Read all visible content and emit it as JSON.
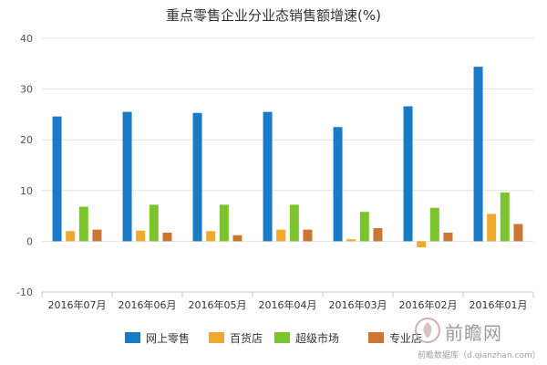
{
  "chart_data": {
    "type": "bar",
    "title": "重点零售企业分业态销售额增速(%)",
    "categories": [
      "2016年07月",
      "2016年06月",
      "2016年05月",
      "2016年04月",
      "2016年03月",
      "2016年02月",
      "2016年01月"
    ],
    "series": [
      {
        "name": "网上零售",
        "color": "#1a7ac6",
        "values": [
          24.6,
          25.5,
          25.3,
          25.5,
          22.5,
          26.6,
          34.4
        ]
      },
      {
        "name": "百货店",
        "color": "#f0a92e",
        "values": [
          2.0,
          2.1,
          2.0,
          2.3,
          0.4,
          -1.2,
          5.4
        ]
      },
      {
        "name": "超级市场",
        "color": "#7cc42d",
        "values": [
          6.8,
          7.2,
          7.2,
          7.2,
          5.8,
          6.6,
          9.6
        ]
      },
      {
        "name": "专业店",
        "color": "#cc7634",
        "values": [
          2.3,
          1.7,
          1.2,
          2.3,
          2.6,
          1.7,
          3.4
        ]
      }
    ],
    "ylim": [
      -10,
      40
    ],
    "yticks": [
      -10,
      0,
      10,
      20,
      30,
      40
    ],
    "grid": true,
    "legend": "bottom"
  },
  "watermark": {
    "brand": "前瞻网",
    "sub": "前瞻数据库（d.qianzhan.com）",
    "logo_icon": "qianzhan-logo-icon"
  }
}
